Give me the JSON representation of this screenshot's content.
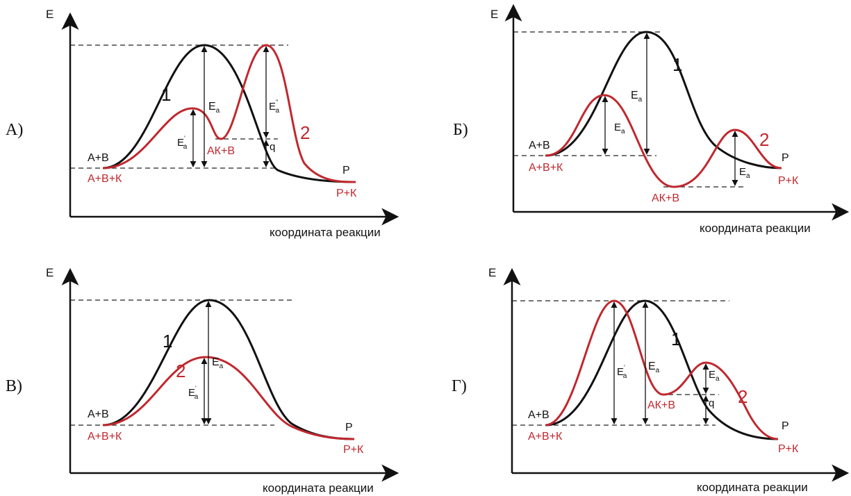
{
  "colors": {
    "curve1": "#111111",
    "curve2": "#c0282e",
    "axis": "#111111",
    "dash": "#222222"
  },
  "axis_labels": {
    "y": "E",
    "x": "координата реакции"
  },
  "panels": [
    {
      "id": "A",
      "letter": "А)",
      "curve1_label": "1",
      "curve2_label": "2",
      "reactant_black": "А+В",
      "reactant_red": "А+В+К",
      "product_black": "Р",
      "product_red": "Р+К",
      "intermediate": "АК+В",
      "ea": "E",
      "ea_sub": "a",
      "ea_prime_a": "E",
      "ea_prime_a_sub": "a",
      "ea_prime_a_sup": "'",
      "ea_prime_b": "E",
      "ea_prime_b_sub": "a",
      "ea_prime_b_sup": "''",
      "q": "q"
    },
    {
      "id": "B",
      "letter": "Б)",
      "curve1_label": "1",
      "curve2_label": "2",
      "reactant_black": "А+В",
      "reactant_red": "А+В+К",
      "product_black": "Р",
      "product_red": "Р+К",
      "intermediate": "АК+В",
      "ea": "E",
      "ea_sub": "a",
      "ea_prime_a": "E",
      "ea_prime_a_sub": "a",
      "ea_prime_b": "E",
      "ea_prime_b_sub": "a"
    },
    {
      "id": "V",
      "letter": "В)",
      "curve1_label": "1",
      "curve2_label": "2",
      "reactant_black": "А+В",
      "reactant_red": "А+В+К",
      "product_black": "Р",
      "product_red": "Р+К",
      "ea": "E",
      "ea_sub": "a",
      "ea_prime_a": "E",
      "ea_prime_a_sub": "a",
      "ea_prime_a_sup": "'"
    },
    {
      "id": "G",
      "letter": "Г)",
      "curve1_label": "1",
      "curve2_label": "2",
      "reactant_black": "А+В",
      "reactant_red": "А+В+К",
      "product_black": "Р",
      "product_red": "Р+К",
      "intermediate": "АК+В",
      "ea": "E",
      "ea_sub": "a",
      "ea_prime_a": "E",
      "ea_prime_a_sub": "a",
      "ea_prime_a_sup": "'",
      "ea_prime_b": "E",
      "ea_prime_b_sub": "a",
      "q": "q"
    }
  ]
}
